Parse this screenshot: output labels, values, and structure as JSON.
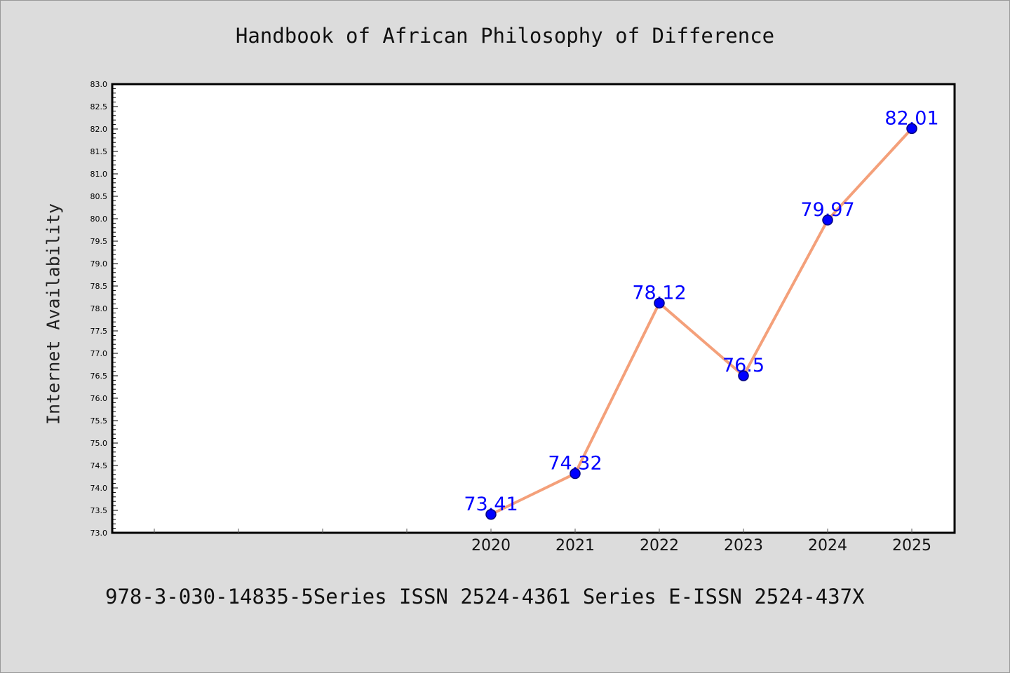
{
  "chart_data": {
    "type": "line",
    "title": "Handbook of African Philosophy of Difference",
    "ylabel": "Internet Availability",
    "xlabel": "",
    "footer": "978-3-030-14835-5Series ISSN 2524-4361 Series E-ISSN 2524-437X",
    "x": [
      "2020",
      "2021",
      "2022",
      "2023",
      "2024",
      "2025"
    ],
    "values": [
      73.41,
      74.32,
      78.12,
      76.5,
      79.97,
      82.01
    ],
    "data_labels": [
      "73.41",
      "74.32",
      "78.12",
      "76.5",
      "79.97",
      "82.01"
    ],
    "ylim": [
      73.0,
      83.0
    ],
    "y_ticks": [
      "73.0",
      "73.5",
      "74.0",
      "74.5",
      "75.0",
      "75.5",
      "76.0",
      "76.5",
      "77.0",
      "77.5",
      "78.0",
      "78.5",
      "79.0",
      "79.5",
      "80.0",
      "80.5",
      "81.0",
      "81.5",
      "82.0",
      "82.5",
      "83.0"
    ],
    "grid": false,
    "colors": {
      "line": "#f4a07a",
      "marker": "#0000ff",
      "marker_edge": "#000080",
      "data_label": "#0000ff",
      "plot_bg": "#ffffff",
      "page_bg": "#dcdcdc"
    }
  }
}
